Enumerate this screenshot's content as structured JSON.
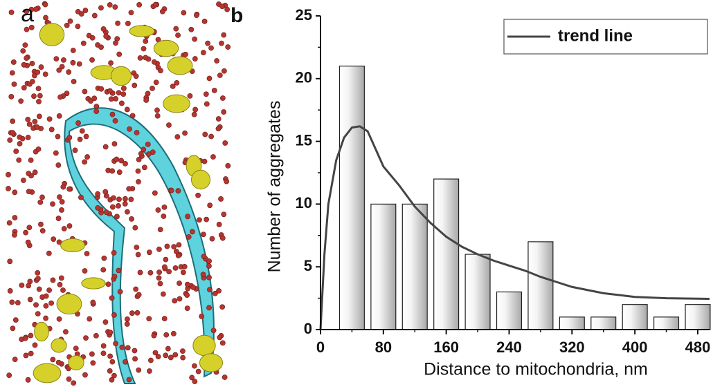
{
  "panel_labels": [
    "a",
    "b"
  ],
  "chart_data": {
    "type": "bar",
    "x_label": "Distance to mitochondria, nm",
    "y_label": "Number of aggregates",
    "x": [
      40,
      80,
      120,
      160,
      200,
      240,
      280,
      320,
      360,
      400,
      440,
      480
    ],
    "values": [
      21,
      10,
      10,
      12,
      6,
      3,
      7,
      1,
      1,
      2,
      1,
      2
    ],
    "color": "#d0d0d0",
    "xlim": [
      0,
      495
    ],
    "ylim": [
      0,
      25
    ],
    "xticks": [
      0,
      80,
      160,
      240,
      320,
      400,
      480
    ],
    "yticks": [
      0,
      5,
      10,
      15,
      20,
      25
    ],
    "legend": "upper right",
    "series": [
      {
        "name": "trend line",
        "type": "line",
        "color": "#444444",
        "x": [
          0,
          5,
          10,
          20,
          30,
          40,
          50,
          60,
          80,
          100,
          120,
          140,
          160,
          180,
          200,
          220,
          240,
          260,
          280,
          300,
          320,
          360,
          400,
          440,
          495
        ],
        "values": [
          0,
          6,
          10,
          13.5,
          15.3,
          16.1,
          16.2,
          15.8,
          13,
          11.5,
          9.8,
          8.5,
          7.4,
          6.6,
          6,
          5.5,
          5.1,
          4.7,
          4.2,
          3.8,
          3.4,
          2.9,
          2.6,
          2.5,
          2.45
        ]
      }
    ]
  }
}
